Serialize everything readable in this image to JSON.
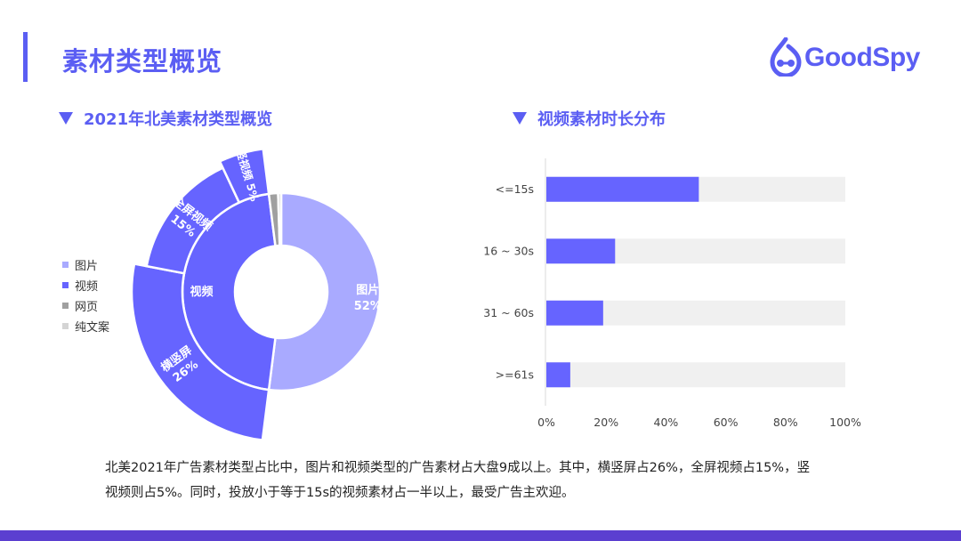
{
  "page_title": "素材类型概览",
  "logo": {
    "text": "GoodSpy",
    "icon": "goodspy-logo-icon",
    "color": "#5b5ef3"
  },
  "colors": {
    "accent": "#5b5ef3",
    "image": "#a9aaff",
    "video": "#6664ff",
    "webpage": "#a0a0a0",
    "text_only": "#d4d4d4",
    "track": "#f0f0f0"
  },
  "left_section": {
    "title": "2021年北美素材类型概览"
  },
  "right_section": {
    "title": "视频素材时长分布"
  },
  "legend": [
    {
      "label": "图片",
      "color": "#a9aaff"
    },
    {
      "label": "视频",
      "color": "#6664ff"
    },
    {
      "label": "网页",
      "color": "#a0a0a0"
    },
    {
      "label": "纯文案",
      "color": "#d4d4d4"
    }
  ],
  "chart_data": [
    {
      "type": "pie",
      "inner_ring": [
        {
          "label": "图片",
          "value_label": "52%",
          "value": 52,
          "color": "#a9aaff"
        },
        {
          "label": "视频",
          "value_label": "",
          "value": 46,
          "color": "#6664ff"
        },
        {
          "label": "网页",
          "value_label": "",
          "value": 1.5,
          "color": "#a0a0a0"
        },
        {
          "label": "纯文案",
          "value_label": "",
          "value": 0.5,
          "color": "#d4d4d4"
        }
      ],
      "outer_ring": [
        {
          "label": "横竖屏",
          "value_label": "26%",
          "value": 26
        },
        {
          "label": "全屏视频",
          "value_label": "15%",
          "value": 15
        },
        {
          "label": "竖视频",
          "value_label": "5%",
          "value": 5
        }
      ]
    },
    {
      "type": "bar",
      "orientation": "horizontal",
      "categories": [
        "<=15s",
        "16 ~ 30s",
        "31 ~ 60s",
        ">=61s"
      ],
      "values": [
        51,
        23,
        19,
        8
      ],
      "xlim": [
        0,
        100
      ],
      "xticks": [
        "0%",
        "20%",
        "40%",
        "60%",
        "80%",
        "100%"
      ]
    }
  ],
  "caption": {
    "line1": "北美2021年广告素材类型占比中，图片和视频类型的广告素材占大盘9成以上。其中，横竖屏占26%，全屏视频占15%，竖",
    "line2": "视频则占5%。同时，投放小于等于15s的视频素材占一半以上，最受广告主欢迎。"
  }
}
